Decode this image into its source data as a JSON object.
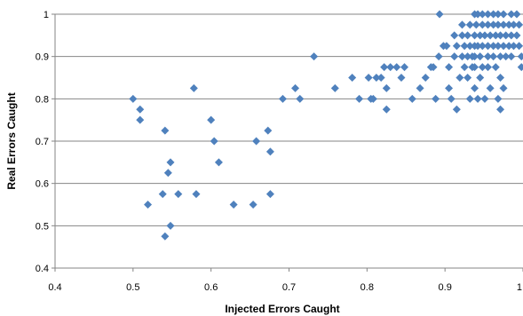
{
  "chart_data": {
    "type": "scatter",
    "xlabel": "Injected Errors Caught",
    "ylabel": "Real Errors Caught",
    "xlim": [
      0.4,
      1.0
    ],
    "ylim": [
      0.4,
      1.0
    ],
    "x_ticks": [
      "0.4",
      "0.5",
      "0.6",
      "0.7",
      "0.8",
      "0.9",
      "1"
    ],
    "y_ticks": [
      "0.4",
      "0.5",
      "0.6",
      "0.7",
      "0.8",
      "0.9",
      "1"
    ],
    "grid": "horizontal",
    "legend": "none",
    "marker": "diamond",
    "marker_color": "#4f81bd",
    "points": [
      [
        0.5,
        0.8
      ],
      [
        0.509,
        0.775
      ],
      [
        0.509,
        0.75
      ],
      [
        0.519,
        0.55
      ],
      [
        0.538,
        0.575
      ],
      [
        0.541,
        0.725
      ],
      [
        0.541,
        0.475
      ],
      [
        0.545,
        0.625
      ],
      [
        0.548,
        0.65
      ],
      [
        0.548,
        0.5
      ],
      [
        0.558,
        0.575
      ],
      [
        0.578,
        0.825
      ],
      [
        0.581,
        0.575
      ],
      [
        0.6,
        0.75
      ],
      [
        0.604,
        0.7
      ],
      [
        0.61,
        0.65
      ],
      [
        0.629,
        0.55
      ],
      [
        0.654,
        0.55
      ],
      [
        0.658,
        0.7
      ],
      [
        0.673,
        0.725
      ],
      [
        0.676,
        0.675
      ],
      [
        0.676,
        0.575
      ],
      [
        0.692,
        0.8
      ],
      [
        0.708,
        0.825
      ],
      [
        0.714,
        0.8
      ],
      [
        0.732,
        0.9
      ],
      [
        0.759,
        0.825
      ],
      [
        0.781,
        0.85
      ],
      [
        0.79,
        0.8
      ],
      [
        0.802,
        0.85
      ],
      [
        0.805,
        0.8
      ],
      [
        0.808,
        0.8
      ],
      [
        0.812,
        0.85
      ],
      [
        0.818,
        0.85
      ],
      [
        0.822,
        0.875
      ],
      [
        0.825,
        0.825
      ],
      [
        0.825,
        0.775
      ],
      [
        0.83,
        0.875
      ],
      [
        0.838,
        0.875
      ],
      [
        0.844,
        0.85
      ],
      [
        0.848,
        0.875
      ],
      [
        0.858,
        0.8
      ],
      [
        0.868,
        0.825
      ],
      [
        0.875,
        0.85
      ],
      [
        0.882,
        0.875
      ],
      [
        0.885,
        0.875
      ],
      [
        0.888,
        0.8
      ],
      [
        0.892,
        0.9
      ],
      [
        0.893,
        1.0
      ],
      [
        0.898,
        0.925
      ],
      [
        0.902,
        0.925
      ],
      [
        0.905,
        0.875
      ],
      [
        0.905,
        0.825
      ],
      [
        0.908,
        0.8
      ],
      [
        0.912,
        0.95
      ],
      [
        0.912,
        0.9
      ],
      [
        0.915,
        0.925
      ],
      [
        0.915,
        0.775
      ],
      [
        0.919,
        0.85
      ],
      [
        0.922,
        0.975
      ],
      [
        0.922,
        0.95
      ],
      [
        0.922,
        0.9
      ],
      [
        0.925,
        0.925
      ],
      [
        0.925,
        0.875
      ],
      [
        0.929,
        0.95
      ],
      [
        0.929,
        0.9
      ],
      [
        0.929,
        0.85
      ],
      [
        0.932,
        0.975
      ],
      [
        0.932,
        0.925
      ],
      [
        0.932,
        0.8
      ],
      [
        0.935,
        0.875
      ],
      [
        0.935,
        0.9
      ],
      [
        0.938,
        1.0
      ],
      [
        0.938,
        0.95
      ],
      [
        0.938,
        0.925
      ],
      [
        0.938,
        0.9
      ],
      [
        0.938,
        0.875
      ],
      [
        0.938,
        0.825
      ],
      [
        0.94,
        0.975
      ],
      [
        0.942,
        1.0
      ],
      [
        0.942,
        0.925
      ],
      [
        0.942,
        0.8
      ],
      [
        0.945,
        0.95
      ],
      [
        0.945,
        0.9
      ],
      [
        0.945,
        0.85
      ],
      [
        0.948,
        1.0
      ],
      [
        0.948,
        0.975
      ],
      [
        0.948,
        0.925
      ],
      [
        0.948,
        0.875
      ],
      [
        0.951,
        0.95
      ],
      [
        0.951,
        0.8
      ],
      [
        0.955,
        1.0
      ],
      [
        0.955,
        0.975
      ],
      [
        0.955,
        0.925
      ],
      [
        0.955,
        0.9
      ],
      [
        0.955,
        0.875
      ],
      [
        0.958,
        0.95
      ],
      [
        0.958,
        0.825
      ],
      [
        0.962,
        1.0
      ],
      [
        0.962,
        0.975
      ],
      [
        0.962,
        0.925
      ],
      [
        0.962,
        0.9
      ],
      [
        0.965,
        0.95
      ],
      [
        0.965,
        0.875
      ],
      [
        0.968,
        1.0
      ],
      [
        0.968,
        0.975
      ],
      [
        0.968,
        0.925
      ],
      [
        0.968,
        0.8
      ],
      [
        0.971,
        0.95
      ],
      [
        0.971,
        0.9
      ],
      [
        0.971,
        0.85
      ],
      [
        0.971,
        0.775
      ],
      [
        0.975,
        1.0
      ],
      [
        0.975,
        0.975
      ],
      [
        0.975,
        0.925
      ],
      [
        0.975,
        0.825
      ],
      [
        0.978,
        0.95
      ],
      [
        0.978,
        0.9
      ],
      [
        0.982,
        0.975
      ],
      [
        0.982,
        0.925
      ],
      [
        0.985,
        1.0
      ],
      [
        0.985,
        0.95
      ],
      [
        0.985,
        0.9
      ],
      [
        0.988,
        0.975
      ],
      [
        0.988,
        0.925
      ],
      [
        0.992,
        1.0
      ],
      [
        0.992,
        0.95
      ],
      [
        0.995,
        0.925
      ],
      [
        0.995,
        0.975
      ],
      [
        0.998,
        0.875
      ],
      [
        0.998,
        0.9
      ]
    ]
  }
}
